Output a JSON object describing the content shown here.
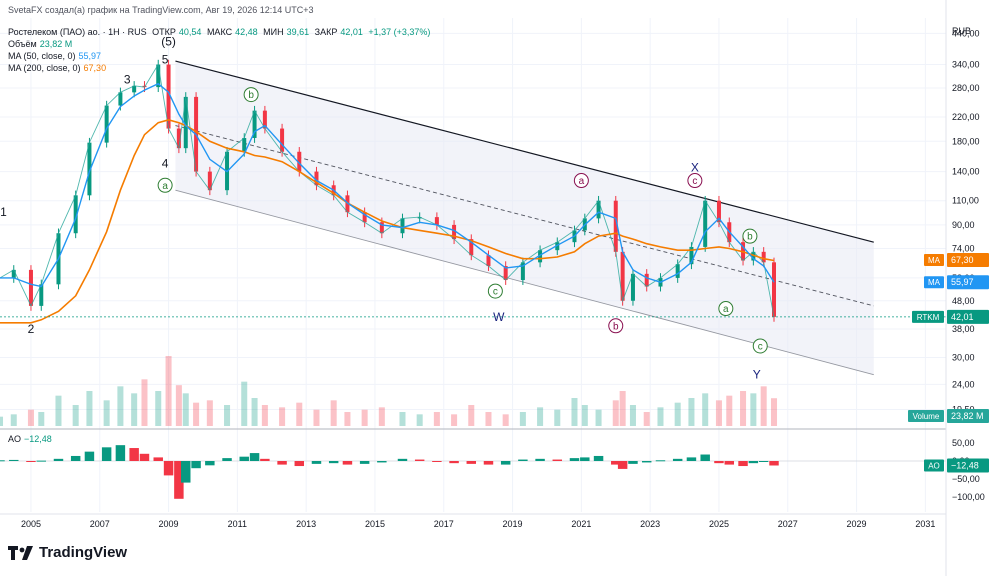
{
  "top_caption": "SvetaFX создал(а) график на TradingView.com, Авг 19, 2026 12:14 UTC+3",
  "legend": {
    "symbol": "Ростелеком (ПАО) ао. · 1Н · RUS",
    "open_label": "ОТКР",
    "open_value": "40,54",
    "high_label": "МАКС",
    "high_value": "42,48",
    "low_label": "МИН",
    "low_value": "39,61",
    "close_label": "ЗАКР",
    "close_value": "42,01",
    "change": "+1,37 (+3,37%)",
    "volume_label": "Объём",
    "volume_value": "23,82 M",
    "ma50_label": "MA (50, close, 0)",
    "ma50_value": "55,97",
    "ma200_label": "MA (200, close, 0)",
    "ma200_value": "67,30",
    "ao_label": "AO",
    "ao_value": "−12,48"
  },
  "currency": "RUB",
  "brand_name": "TradingView",
  "colors": {
    "candle_up": "#089981",
    "candle_down": "#f23645",
    "ma50": "#2196f3",
    "ma200": "#f57c00",
    "channel": "#d1d4dc",
    "ao_up": "#089981",
    "ao_down": "#f23645",
    "wave_green": "#2e7d32",
    "wave_red": "#880e4f",
    "wave_blue": "#1a237e"
  },
  "price_axis": {
    "ticks": [
      "440,00",
      "340,00",
      "280,00",
      "220,00",
      "180,00",
      "140,00",
      "110,00",
      "90,00",
      "74,00",
      "58,00",
      "48,00",
      "38,00",
      "30,00",
      "24,00",
      "19,50"
    ],
    "tags": [
      {
        "label": "MA",
        "value": "67,30",
        "color": "#f57c00"
      },
      {
        "label": "MA",
        "value": "55,97",
        "color": "#2196f3"
      },
      {
        "label": "RTKM",
        "value": "42,01",
        "color": "#089981"
      },
      {
        "label": "Volume",
        "value": "23,82 M",
        "color": "#26a69a"
      }
    ]
  },
  "ao_axis": {
    "ticks": [
      "50,00",
      "0,00",
      "−50,00",
      "−100,00"
    ],
    "tag": {
      "label": "AO",
      "value": "−12,48",
      "color": "#089981"
    }
  },
  "time_axis": {
    "ticks": [
      "2005",
      "2007",
      "2009",
      "2011",
      "2013",
      "2015",
      "2017",
      "2019",
      "2021",
      "2023",
      "2025",
      "2027",
      "2029",
      "2031"
    ]
  },
  "chart_data": {
    "type": "line",
    "title": "Ростелеком (ПАО) ао. · 1Н · RUS",
    "xlabel": "",
    "ylabel": "",
    "scale": "log",
    "ylim": [
      17,
      500
    ],
    "xlim": [
      2004.1,
      2031.6
    ],
    "grid": true,
    "legend_position": "top-left",
    "x": [
      2004.1,
      2004.5,
      2005.0,
      2005.3,
      2005.8,
      2006.3,
      2006.7,
      2007.2,
      2007.6,
      2008.0,
      2008.3,
      2008.7,
      2009.0,
      2009.3,
      2009.5,
      2009.8,
      2010.2,
      2010.7,
      2011.2,
      2011.5,
      2011.8,
      2012.3,
      2012.8,
      2013.3,
      2013.8,
      2014.2,
      2014.7,
      2015.2,
      2015.8,
      2016.3,
      2016.8,
      2017.3,
      2017.8,
      2018.3,
      2018.8,
      2019.3,
      2019.8,
      2020.3,
      2020.8,
      2021.1,
      2021.5,
      2022.0,
      2022.2,
      2022.5,
      2022.9,
      2023.3,
      2023.8,
      2024.2,
      2024.6,
      2025.0,
      2025.3,
      2025.7,
      2026.0,
      2026.3,
      2026.6
    ],
    "series": [
      {
        "name": "Ростелеком (ПАО) ао.",
        "values": [
          58,
          62,
          46,
          55,
          84,
          115,
          178,
          242,
          270,
          285,
          282,
          340,
          200,
          170,
          260,
          140,
          120,
          165,
          185,
          232,
          200,
          165,
          140,
          125,
          115,
          100,
          92,
          84,
          95,
          96,
          90,
          80,
          70,
          64,
          57,
          66,
          73,
          78,
          86,
          95,
          110,
          72,
          48,
          60,
          54,
          58,
          65,
          75,
          110,
          92,
          78,
          67,
          72,
          66,
          42
        ]
      },
      {
        "name": "MA (50, close, 0)",
        "values": [
          58,
          58,
          55,
          54,
          68,
          95,
          140,
          200,
          240,
          262,
          275,
          290,
          270,
          225,
          205,
          190,
          155,
          140,
          162,
          195,
          205,
          175,
          150,
          130,
          120,
          108,
          98,
          90,
          88,
          92,
          90,
          86,
          78,
          70,
          63,
          64,
          70,
          76,
          82,
          90,
          100,
          95,
          72,
          62,
          58,
          56,
          60,
          66,
          85,
          95,
          85,
          75,
          68,
          64,
          56
        ]
      },
      {
        "name": "MA (200, close, 0)",
        "values": [
          40,
          40,
          40,
          41,
          44,
          50,
          62,
          85,
          120,
          160,
          190,
          210,
          215,
          210,
          205,
          195,
          180,
          170,
          165,
          160,
          158,
          152,
          140,
          128,
          117,
          108,
          100,
          93,
          88,
          86,
          84,
          82,
          79,
          75,
          71,
          68,
          68,
          69,
          72,
          77,
          82,
          84,
          82,
          80,
          77,
          75,
          73,
          73,
          74,
          75,
          74,
          72,
          70,
          68,
          67
        ]
      }
    ],
    "volume_m": [
      8,
      10,
      14,
      12,
      26,
      18,
      30,
      22,
      34,
      28,
      40,
      30,
      60,
      35,
      28,
      20,
      22,
      18,
      38,
      24,
      18,
      16,
      20,
      14,
      22,
      12,
      14,
      16,
      12,
      10,
      12,
      10,
      18,
      12,
      10,
      12,
      16,
      14,
      24,
      18,
      14,
      22,
      30,
      18,
      12,
      16,
      20,
      24,
      28,
      22,
      26,
      30,
      28,
      34,
      23.82
    ],
    "ao": [
      2,
      3,
      -2,
      1,
      6,
      14,
      26,
      38,
      44,
      36,
      20,
      10,
      -40,
      -105,
      -60,
      -20,
      -12,
      8,
      12,
      22,
      6,
      -10,
      -14,
      -8,
      -6,
      -10,
      -8,
      -4,
      6,
      4,
      -2,
      -6,
      -8,
      -10,
      -10,
      4,
      6,
      4,
      8,
      10,
      14,
      -10,
      -22,
      -8,
      -4,
      2,
      6,
      10,
      18,
      -6,
      -10,
      -14,
      -6,
      -2,
      -12.48
    ],
    "ao_ylim": [
      -115,
      60
    ],
    "annotations": [
      {
        "text": "1",
        "x": 2004.2,
        "y": 100
      },
      {
        "text": "2",
        "x": 2005.0,
        "y": 38
      },
      {
        "text": "3",
        "x": 2007.8,
        "y": 300
      },
      {
        "text": "4",
        "x": 2008.9,
        "y": 150
      },
      {
        "text": "5",
        "x": 2008.9,
        "y": 355
      },
      {
        "text": "(5)",
        "x": 2009.0,
        "y": 412
      },
      {
        "text": "a",
        "x": 2008.9,
        "y": 125,
        "circle": true,
        "color": "green"
      },
      {
        "text": "b",
        "x": 2011.4,
        "y": 265,
        "circle": true,
        "color": "green"
      },
      {
        "text": "c",
        "x": 2018.5,
        "y": 52,
        "circle": true,
        "color": "green"
      },
      {
        "text": "W",
        "x": 2018.6,
        "y": 42
      },
      {
        "text": "a",
        "x": 2021.0,
        "y": 130,
        "circle": true,
        "color": "red"
      },
      {
        "text": "b",
        "x": 2022.0,
        "y": 39,
        "circle": true,
        "color": "red"
      },
      {
        "text": "c",
        "x": 2024.3,
        "y": 130,
        "circle": true,
        "color": "red"
      },
      {
        "text": "X",
        "x": 2024.3,
        "y": 145
      },
      {
        "text": "a",
        "x": 2025.2,
        "y": 45,
        "circle": true,
        "color": "green"
      },
      {
        "text": "b",
        "x": 2025.9,
        "y": 82,
        "circle": true,
        "color": "green"
      },
      {
        "text": "c",
        "x": 2026.2,
        "y": 33,
        "circle": true,
        "color": "green"
      },
      {
        "text": "Y",
        "x": 2026.1,
        "y": 26
      }
    ],
    "trend_lines": [
      {
        "name": "channel-upper",
        "x1": 2009.2,
        "y1": 350,
        "x2": 2029.5,
        "y2": 78
      },
      {
        "name": "channel-lower",
        "x1": 2009.2,
        "y1": 120,
        "x2": 2029.5,
        "y2": 26
      },
      {
        "name": "channel-mid",
        "x1": 2009.2,
        "y1": 205,
        "x2": 2029.5,
        "y2": 46,
        "dashed": true
      }
    ]
  }
}
